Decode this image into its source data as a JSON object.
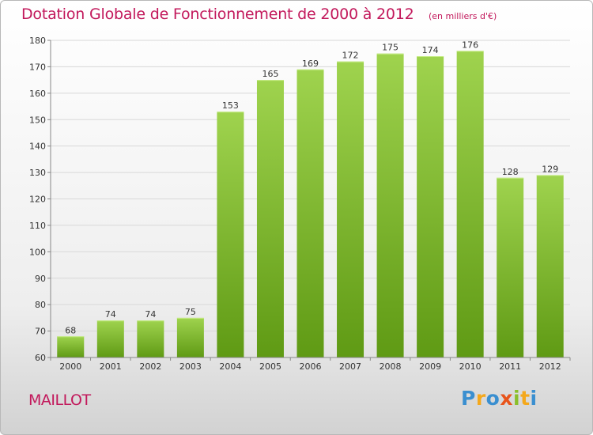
{
  "title": "Dotation Globale de Fonctionnement de 2000 à 2012",
  "unit_note": "(en milliers d'€)",
  "commune": "MAILLOT",
  "logo": {
    "text": "Proxiti"
  },
  "colors": {
    "title": "#c2185b",
    "bar_top": "#9fd34e",
    "bar_bottom": "#5f9a14",
    "grid": "#d8d8d8"
  },
  "chart_data": {
    "type": "bar",
    "categories": [
      "2000",
      "2001",
      "2002",
      "2003",
      "2004",
      "2005",
      "2006",
      "2007",
      "2008",
      "2009",
      "2010",
      "2011",
      "2012"
    ],
    "values": [
      68,
      74,
      74,
      75,
      153,
      165,
      169,
      172,
      175,
      174,
      176,
      128,
      129
    ],
    "data_labels": [
      "68",
      "74",
      "74",
      "75",
      "153",
      "165",
      "169",
      "172",
      "175",
      "174",
      "176",
      "128",
      "129"
    ],
    "ylim": [
      60,
      180
    ],
    "yticks": [
      60,
      70,
      80,
      90,
      100,
      110,
      120,
      130,
      140,
      150,
      160,
      170,
      180
    ],
    "grid": true,
    "legend": false
  }
}
